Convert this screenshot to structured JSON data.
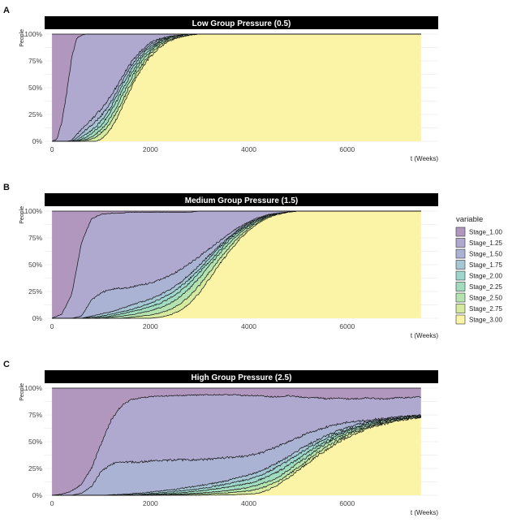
{
  "chart_data": [
    {
      "type": "area",
      "panel_letter": "A",
      "title": "Low Group Pressure (0.5)",
      "ylabel": "People",
      "xlabel": "t (Weeks)",
      "xlim": [
        -150,
        7850
      ],
      "ylim": [
        0,
        1
      ],
      "x_ticks": [
        0,
        2000,
        4000,
        6000
      ],
      "y_ticks": [
        0,
        0.25,
        0.5,
        0.75,
        1
      ],
      "y_tick_labels": [
        "0%",
        "25%",
        "50%",
        "75%",
        "100%"
      ],
      "x_end": 7500,
      "grid": true,
      "noise": 0.025,
      "x": [
        0,
        100,
        200,
        300,
        400,
        500,
        600,
        700,
        800,
        900,
        1000,
        1100,
        1200,
        1300,
        1400,
        1500,
        1600,
        1700,
        1800,
        1900,
        2000,
        2200,
        2400,
        2600,
        2800,
        3000,
        3300,
        3600,
        4000,
        4500,
        5000,
        6000,
        7000,
        7500
      ],
      "boundaries": [
        [
          0,
          0,
          0,
          0,
          0,
          0,
          0,
          0,
          0,
          0,
          0.02,
          0.06,
          0.12,
          0.2,
          0.29,
          0.39,
          0.49,
          0.58,
          0.66,
          0.73,
          0.79,
          0.88,
          0.94,
          0.97,
          0.99,
          1,
          1,
          1,
          1,
          1,
          1,
          1,
          1,
          1
        ],
        [
          0,
          0,
          0,
          0,
          0,
          0,
          0,
          0.01,
          0.02,
          0.04,
          0.08,
          0.12,
          0.18,
          0.26,
          0.35,
          0.44,
          0.53,
          0.62,
          0.69,
          0.76,
          0.82,
          0.9,
          0.95,
          0.98,
          0.99,
          1,
          1,
          1,
          1,
          1,
          1,
          1,
          1,
          1
        ],
        [
          0,
          0,
          0,
          0,
          0,
          0,
          0.01,
          0.02,
          0.04,
          0.07,
          0.11,
          0.16,
          0.23,
          0.31,
          0.4,
          0.49,
          0.58,
          0.66,
          0.73,
          0.79,
          0.84,
          0.92,
          0.96,
          0.98,
          0.99,
          1,
          1,
          1,
          1,
          1,
          1,
          1,
          1,
          1
        ],
        [
          0,
          0,
          0,
          0,
          0,
          0,
          0.02,
          0.04,
          0.07,
          0.11,
          0.15,
          0.21,
          0.28,
          0.36,
          0.45,
          0.54,
          0.62,
          0.7,
          0.76,
          0.82,
          0.86,
          0.93,
          0.97,
          0.99,
          1,
          1,
          1,
          1,
          1,
          1,
          1,
          1,
          1,
          1
        ],
        [
          0,
          0,
          0,
          0,
          0,
          0.01,
          0.04,
          0.07,
          0.1,
          0.14,
          0.19,
          0.25,
          0.32,
          0.41,
          0.5,
          0.58,
          0.66,
          0.73,
          0.79,
          0.84,
          0.88,
          0.94,
          0.97,
          0.99,
          1,
          1,
          1,
          1,
          1,
          1,
          1,
          1,
          1,
          1
        ],
        [
          0,
          0,
          0,
          0,
          0,
          0.03,
          0.07,
          0.11,
          0.15,
          0.19,
          0.24,
          0.3,
          0.37,
          0.45,
          0.54,
          0.62,
          0.7,
          0.76,
          0.82,
          0.86,
          0.9,
          0.95,
          0.98,
          0.99,
          1,
          1,
          1,
          1,
          1,
          1,
          1,
          1,
          1,
          1
        ],
        [
          0,
          0,
          0,
          0,
          0.01,
          0.06,
          0.11,
          0.16,
          0.2,
          0.25,
          0.3,
          0.36,
          0.43,
          0.5,
          0.58,
          0.66,
          0.73,
          0.79,
          0.84,
          0.88,
          0.92,
          0.96,
          0.98,
          0.99,
          1,
          1,
          1,
          1,
          1,
          1,
          1,
          1,
          1,
          1
        ],
        [
          0,
          0.02,
          0.18,
          0.45,
          0.78,
          0.96,
          0.99,
          1,
          1,
          1,
          1,
          1,
          1,
          1,
          1,
          1,
          1,
          1,
          1,
          1,
          1,
          1,
          1,
          1,
          1,
          1,
          1,
          1,
          1,
          1,
          1,
          1,
          1,
          1
        ]
      ]
    },
    {
      "type": "area",
      "panel_letter": "B",
      "title": "Medium Group Pressure (1.5)",
      "ylabel": "People",
      "xlabel": "t (Weeks)",
      "xlim": [
        -150,
        7850
      ],
      "ylim": [
        0,
        1
      ],
      "x_ticks": [
        0,
        2000,
        4000,
        6000
      ],
      "y_ticks": [
        0,
        0.25,
        0.5,
        0.75,
        1
      ],
      "y_tick_labels": [
        "0%",
        "25%",
        "50%",
        "75%",
        "100%"
      ],
      "x_end": 7500,
      "grid": true,
      "noise": 0.018,
      "x": [
        0,
        200,
        400,
        600,
        800,
        1000,
        1200,
        1400,
        1600,
        1800,
        2000,
        2200,
        2400,
        2600,
        2800,
        3000,
        3200,
        3400,
        3600,
        3800,
        4000,
        4200,
        4400,
        4600,
        4800,
        5000,
        5500,
        6000,
        7000,
        7500
      ],
      "boundaries": [
        [
          0,
          0,
          0,
          0,
          0,
          0,
          0,
          0,
          0,
          0,
          0,
          0.01,
          0.03,
          0.07,
          0.14,
          0.24,
          0.37,
          0.5,
          0.62,
          0.73,
          0.82,
          0.89,
          0.94,
          0.97,
          0.99,
          1,
          1,
          1,
          1,
          1
        ],
        [
          0,
          0,
          0,
          0,
          0,
          0,
          0,
          0,
          0.01,
          0.02,
          0.03,
          0.05,
          0.08,
          0.13,
          0.21,
          0.31,
          0.43,
          0.55,
          0.66,
          0.76,
          0.84,
          0.9,
          0.95,
          0.97,
          0.99,
          1,
          1,
          1,
          1,
          1
        ],
        [
          0,
          0,
          0,
          0,
          0,
          0,
          0.01,
          0.02,
          0.03,
          0.05,
          0.07,
          0.1,
          0.14,
          0.2,
          0.28,
          0.38,
          0.49,
          0.6,
          0.7,
          0.79,
          0.86,
          0.91,
          0.95,
          0.98,
          0.99,
          1,
          1,
          1,
          1,
          1
        ],
        [
          0,
          0,
          0,
          0,
          0,
          0.01,
          0.02,
          0.04,
          0.06,
          0.08,
          0.11,
          0.14,
          0.19,
          0.25,
          0.33,
          0.43,
          0.53,
          0.63,
          0.73,
          0.81,
          0.87,
          0.92,
          0.96,
          0.98,
          0.99,
          1,
          1,
          1,
          1,
          1
        ],
        [
          0,
          0,
          0,
          0,
          0.01,
          0.02,
          0.04,
          0.06,
          0.08,
          0.11,
          0.14,
          0.18,
          0.23,
          0.29,
          0.37,
          0.46,
          0.56,
          0.66,
          0.75,
          0.82,
          0.88,
          0.93,
          0.96,
          0.98,
          0.99,
          1,
          1,
          1,
          1,
          1
        ],
        [
          0,
          0,
          0,
          0,
          0.02,
          0.04,
          0.06,
          0.09,
          0.12,
          0.15,
          0.18,
          0.22,
          0.27,
          0.33,
          0.41,
          0.5,
          0.59,
          0.68,
          0.76,
          0.83,
          0.89,
          0.93,
          0.96,
          0.98,
          0.99,
          1,
          1,
          1,
          1,
          1
        ],
        [
          0,
          0,
          0,
          0.02,
          0.17,
          0.24,
          0.27,
          0.28,
          0.29,
          0.31,
          0.33,
          0.36,
          0.4,
          0.45,
          0.51,
          0.58,
          0.65,
          0.72,
          0.79,
          0.85,
          0.9,
          0.94,
          0.97,
          0.98,
          0.99,
          1,
          1,
          1,
          1,
          1
        ],
        [
          0,
          0.04,
          0.22,
          0.7,
          0.93,
          0.97,
          0.98,
          0.98,
          0.99,
          0.99,
          0.99,
          0.99,
          0.99,
          0.99,
          0.99,
          1,
          1,
          1,
          1,
          1,
          1,
          1,
          1,
          1,
          1,
          1,
          1,
          1,
          1,
          1
        ]
      ]
    },
    {
      "type": "area",
      "panel_letter": "C",
      "title": "High Group Pressure (2.5)",
      "ylabel": "People",
      "xlabel": "t (Weeks)",
      "xlim": [
        -150,
        7850
      ],
      "ylim": [
        0,
        1
      ],
      "x_ticks": [
        0,
        2000,
        4000,
        6000
      ],
      "y_ticks": [
        0,
        0.25,
        0.5,
        0.75,
        1
      ],
      "y_tick_labels": [
        "0%",
        "25%",
        "50%",
        "75%",
        "100%"
      ],
      "x_end": 7500,
      "grid": true,
      "noise": 0.022,
      "x": [
        0,
        200,
        400,
        600,
        800,
        1000,
        1200,
        1400,
        1600,
        1800,
        2000,
        2500,
        3000,
        3500,
        4000,
        4200,
        4400,
        4600,
        4800,
        5000,
        5200,
        5400,
        5600,
        5800,
        6000,
        6200,
        6400,
        6600,
        6800,
        7000,
        7200,
        7500
      ],
      "boundaries": [
        [
          0,
          0,
          0,
          0,
          0,
          0,
          0,
          0,
          0,
          0,
          0,
          0,
          0,
          0.003,
          0.01,
          0.02,
          0.05,
          0.1,
          0.16,
          0.23,
          0.3,
          0.37,
          0.43,
          0.49,
          0.54,
          0.58,
          0.62,
          0.65,
          0.67,
          0.69,
          0.71,
          0.73
        ],
        [
          0,
          0,
          0,
          0,
          0,
          0,
          0,
          0,
          0,
          0,
          0,
          0.005,
          0.01,
          0.02,
          0.04,
          0.06,
          0.09,
          0.13,
          0.19,
          0.26,
          0.33,
          0.4,
          0.46,
          0.51,
          0.56,
          0.6,
          0.63,
          0.66,
          0.68,
          0.7,
          0.71,
          0.73
        ],
        [
          0,
          0,
          0,
          0,
          0,
          0,
          0,
          0,
          0,
          0,
          0.003,
          0.01,
          0.02,
          0.04,
          0.07,
          0.1,
          0.13,
          0.17,
          0.23,
          0.3,
          0.36,
          0.43,
          0.49,
          0.54,
          0.58,
          0.61,
          0.64,
          0.67,
          0.69,
          0.7,
          0.72,
          0.735
        ],
        [
          0,
          0,
          0,
          0,
          0,
          0,
          0,
          0,
          0,
          0.003,
          0.008,
          0.02,
          0.04,
          0.07,
          0.11,
          0.14,
          0.18,
          0.22,
          0.28,
          0.34,
          0.4,
          0.46,
          0.51,
          0.56,
          0.6,
          0.63,
          0.66,
          0.68,
          0.7,
          0.71,
          0.72,
          0.735
        ],
        [
          0,
          0,
          0,
          0,
          0,
          0,
          0,
          0.003,
          0.006,
          0.01,
          0.015,
          0.035,
          0.06,
          0.1,
          0.15,
          0.18,
          0.22,
          0.27,
          0.32,
          0.38,
          0.44,
          0.49,
          0.54,
          0.58,
          0.61,
          0.64,
          0.67,
          0.69,
          0.7,
          0.72,
          0.73,
          0.74
        ],
        [
          0,
          0,
          0,
          0,
          0,
          0,
          0.004,
          0.008,
          0.015,
          0.02,
          0.03,
          0.055,
          0.09,
          0.13,
          0.19,
          0.22,
          0.26,
          0.31,
          0.36,
          0.42,
          0.47,
          0.52,
          0.56,
          0.6,
          0.63,
          0.66,
          0.68,
          0.7,
          0.71,
          0.72,
          0.73,
          0.74
        ],
        [
          0,
          0,
          0,
          0.02,
          0.08,
          0.22,
          0.29,
          0.31,
          0.31,
          0.31,
          0.32,
          0.33,
          0.33,
          0.35,
          0.37,
          0.39,
          0.42,
          0.46,
          0.5,
          0.54,
          0.58,
          0.61,
          0.64,
          0.66,
          0.68,
          0.69,
          0.7,
          0.71,
          0.72,
          0.73,
          0.735,
          0.745
        ],
        [
          0,
          0.01,
          0.04,
          0.1,
          0.25,
          0.48,
          0.7,
          0.83,
          0.89,
          0.91,
          0.92,
          0.93,
          0.935,
          0.94,
          0.93,
          0.93,
          0.92,
          0.92,
          0.93,
          0.92,
          0.91,
          0.91,
          0.9,
          0.91,
          0.9,
          0.9,
          0.91,
          0.9,
          0.9,
          0.91,
          0.91,
          0.92
        ]
      ]
    }
  ],
  "legend": {
    "title": "variable",
    "placement": "right",
    "entries": [
      "Stage_1.00",
      "Stage_1.25",
      "Stage_1.50",
      "Stage_1.75",
      "Stage_2.00",
      "Stage_2.25",
      "Stage_2.50",
      "Stage_2.75",
      "Stage_3.00"
    ],
    "colors": [
      "#b196be",
      "#afa8cf",
      "#abb3d4",
      "#a6c6d6",
      "#9ed5cc",
      "#a2dcbe",
      "#b5e3b0",
      "#d5ea9f",
      "#fbf3a6"
    ]
  }
}
